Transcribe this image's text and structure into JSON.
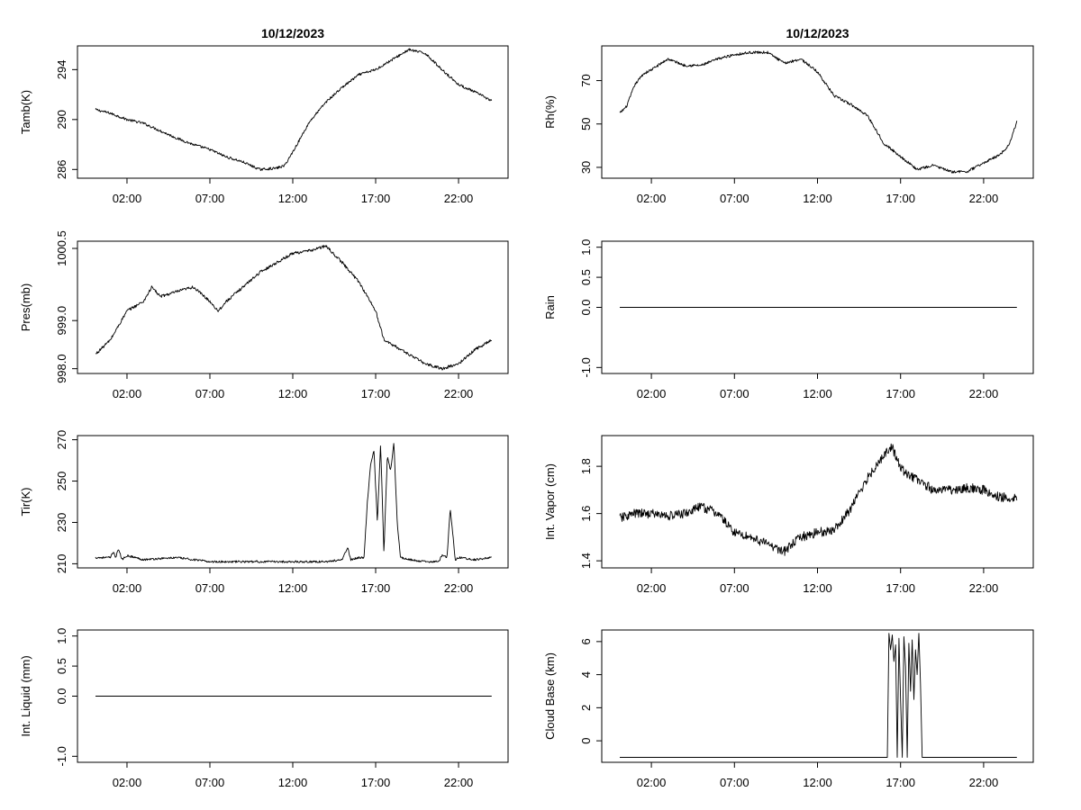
{
  "chart_data": [
    {
      "type": "line",
      "title": "10/12/2023",
      "ylabel": "Tamb(K)",
      "xlabel": "",
      "x_range_hours": [
        0,
        24
      ],
      "x_ticks": [
        "02:00",
        "07:00",
        "12:00",
        "17:00",
        "22:00"
      ],
      "ylim": [
        285.3,
        295.9
      ],
      "y_ticks": [
        286,
        290,
        294
      ],
      "grid": false,
      "noise": 0.1,
      "series": [
        {
          "x": [
            0.1,
            1,
            2,
            3,
            4,
            5,
            6,
            7,
            8,
            9,
            10,
            11,
            11.5,
            12,
            13,
            14,
            15,
            16,
            17,
            18,
            19,
            20,
            21,
            22,
            23,
            24
          ],
          "y": [
            290.8,
            290.5,
            290,
            289.7,
            289.1,
            288.5,
            288,
            287.6,
            287,
            286.6,
            286,
            286.1,
            286.3,
            287.4,
            289.8,
            291.4,
            292.6,
            293.6,
            294,
            294.8,
            295.6,
            295.3,
            294,
            292.8,
            292.2,
            291.5
          ]
        }
      ]
    },
    {
      "type": "line",
      "title": "10/12/2023",
      "ylabel": "Rh(%)",
      "xlabel": "",
      "x_range_hours": [
        0,
        24
      ],
      "x_ticks": [
        "02:00",
        "07:00",
        "12:00",
        "17:00",
        "22:00"
      ],
      "ylim": [
        25,
        86
      ],
      "y_ticks": [
        30,
        50,
        70
      ],
      "grid": false,
      "noise": 0.6,
      "series": [
        {
          "x": [
            0.1,
            0.5,
            1,
            1.5,
            2,
            3,
            4,
            5,
            6,
            7,
            8,
            9,
            10,
            11,
            12,
            13,
            14,
            15,
            16,
            17,
            18,
            19,
            20,
            21,
            22,
            23,
            23.5,
            24
          ],
          "y": [
            55,
            58,
            68,
            73,
            75,
            80,
            77,
            77,
            80,
            82,
            83,
            83,
            78,
            80,
            74,
            63,
            59,
            54,
            41,
            35,
            29,
            31,
            28,
            28,
            32,
            36,
            40,
            51
          ]
        }
      ]
    },
    {
      "type": "line",
      "ylabel": "Pres(mb)",
      "xlabel": "",
      "x_range_hours": [
        0,
        24
      ],
      "x_ticks": [
        "02:00",
        "07:00",
        "12:00",
        "17:00",
        "22:00"
      ],
      "ylim": [
        997.9,
        1000.65
      ],
      "y_ticks": [
        998.0,
        999.0,
        1000.5
      ],
      "y_tick_labels": [
        "998.0",
        "999.0",
        "1000.5"
      ],
      "grid": false,
      "noise": 0.03,
      "series": [
        {
          "x": [
            0.1,
            1,
            2,
            3,
            3.5,
            4,
            5,
            6,
            7,
            7.5,
            8,
            9,
            10,
            11,
            12,
            13,
            14,
            15,
            16,
            17,
            17.5,
            18,
            19,
            20,
            21,
            22,
            23,
            24
          ],
          "y": [
            998.3,
            998.6,
            999.2,
            999.4,
            999.7,
            999.5,
            999.6,
            999.7,
            999.4,
            999.2,
            999.4,
            999.7,
            1000.0,
            1000.2,
            1000.4,
            1000.45,
            1000.55,
            1000.2,
            999.8,
            999.2,
            998.6,
            998.5,
            998.3,
            998.1,
            998.0,
            998.1,
            998.4,
            998.6
          ]
        }
      ]
    },
    {
      "type": "line",
      "ylabel": "Rain",
      "xlabel": "",
      "x_range_hours": [
        0,
        24
      ],
      "x_ticks": [
        "02:00",
        "07:00",
        "12:00",
        "17:00",
        "22:00"
      ],
      "ylim": [
        -1.1,
        1.1
      ],
      "y_ticks": [
        -1.0,
        0.0,
        0.5,
        1.0
      ],
      "y_tick_labels": [
        "-1.0",
        "0.0",
        "0.5",
        "1.0"
      ],
      "grid": false,
      "noise": 0,
      "series": [
        {
          "x": [
            0.1,
            24
          ],
          "y": [
            0,
            0
          ]
        }
      ]
    },
    {
      "type": "line",
      "ylabel": "Tir(K)",
      "xlabel": "",
      "x_range_hours": [
        0,
        24
      ],
      "x_ticks": [
        "02:00",
        "07:00",
        "12:00",
        "17:00",
        "22:00"
      ],
      "ylim": [
        208,
        272
      ],
      "y_ticks": [
        210,
        230,
        250,
        270
      ],
      "grid": false,
      "noise": 0.5,
      "series": [
        {
          "x": [
            0.1,
            1,
            1.2,
            1.3,
            1.5,
            1.7,
            2,
            3,
            5,
            7,
            10,
            12,
            14,
            15,
            15.3,
            15.5,
            16,
            16.3,
            16.5,
            16.7,
            16.9,
            17.1,
            17.3,
            17.5,
            17.7,
            17.9,
            18.1,
            18.3,
            18.5,
            19,
            20,
            20.8,
            21,
            21.3,
            21.5,
            21.8,
            22,
            23,
            24
          ],
          "y": [
            213,
            213,
            216,
            213,
            217,
            212,
            214,
            212,
            213,
            211,
            211,
            211,
            211,
            212,
            218,
            212,
            213,
            213,
            240,
            258,
            265,
            230,
            268,
            215,
            262,
            255,
            269,
            230,
            213,
            212,
            211,
            211,
            214,
            213,
            237,
            212,
            213,
            212,
            213
          ]
        }
      ]
    },
    {
      "type": "line",
      "ylabel": "Int. Vapor (cm)",
      "xlabel": "",
      "x_range_hours": [
        0,
        24
      ],
      "x_ticks": [
        "02:00",
        "07:00",
        "12:00",
        "17:00",
        "22:00"
      ],
      "ylim": [
        1.37,
        1.93
      ],
      "y_ticks": [
        1.4,
        1.6,
        1.8
      ],
      "y_tick_labels": [
        "1.4",
        "1.6",
        "1.8"
      ],
      "grid": false,
      "noise": 0.02,
      "series": [
        {
          "x": [
            0.1,
            1,
            2,
            3,
            4,
            5,
            6,
            6.5,
            7,
            8,
            9,
            10,
            11,
            12,
            13,
            14,
            15,
            16,
            16.5,
            17,
            18,
            19,
            20,
            21,
            22,
            23,
            24
          ],
          "y": [
            1.58,
            1.6,
            1.6,
            1.59,
            1.6,
            1.63,
            1.6,
            1.56,
            1.52,
            1.5,
            1.47,
            1.44,
            1.5,
            1.52,
            1.53,
            1.62,
            1.75,
            1.85,
            1.88,
            1.79,
            1.74,
            1.7,
            1.7,
            1.71,
            1.7,
            1.67,
            1.67
          ]
        }
      ]
    },
    {
      "type": "line",
      "ylabel": "Int. Liquid (mm)",
      "xlabel": "",
      "x_range_hours": [
        0,
        24
      ],
      "x_ticks": [
        "02:00",
        "07:00",
        "12:00",
        "17:00",
        "22:00"
      ],
      "ylim": [
        -1.1,
        1.1
      ],
      "y_ticks": [
        -1.0,
        0.0,
        0.5,
        1.0
      ],
      "y_tick_labels": [
        "-1.0",
        "0.0",
        "0.5",
        "1.0"
      ],
      "grid": false,
      "noise": 0,
      "series": [
        {
          "x": [
            0.1,
            24
          ],
          "y": [
            0,
            0
          ]
        }
      ]
    },
    {
      "type": "line",
      "ylabel": "Cloud Base (km)",
      "xlabel": "",
      "x_range_hours": [
        0,
        24
      ],
      "x_ticks": [
        "02:00",
        "07:00",
        "12:00",
        "17:00",
        "22:00"
      ],
      "ylim": [
        -1.3,
        6.7
      ],
      "y_ticks": [
        0,
        2,
        4,
        6
      ],
      "grid": false,
      "noise": 0,
      "series": [
        {
          "x": [
            0.1,
            16.2,
            16.3,
            16.4,
            16.5,
            16.6,
            16.7,
            16.8,
            16.9,
            17.0,
            17.1,
            17.2,
            17.3,
            17.4,
            17.5,
            17.6,
            17.7,
            17.8,
            17.9,
            18.0,
            18.1,
            18.2,
            18.3,
            24
          ],
          "y": [
            -1,
            -1,
            6.5,
            5.5,
            6.4,
            4.8,
            5.8,
            -1,
            6.2,
            2.5,
            -1,
            6.3,
            4.5,
            -1,
            5.9,
            3,
            6.1,
            2.5,
            5.5,
            4,
            6.5,
            3.5,
            -1,
            -1
          ]
        }
      ]
    }
  ]
}
